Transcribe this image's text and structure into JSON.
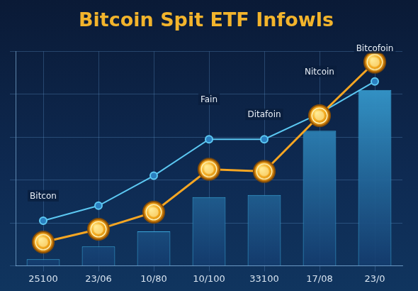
{
  "chart_data": {
    "type": "bar",
    "title": "Bitcoin Spit ETF Infowls",
    "categories": [
      "25100",
      "23/06",
      "10/80",
      "10/100",
      "33100",
      "17/08",
      "23/0"
    ],
    "series": [
      {
        "type": "bar",
        "color": "#3aa6d9",
        "values": [
          3,
          9,
          16,
          32,
          33,
          63,
          82
        ]
      },
      {
        "type": "line",
        "color": "#5cc8f2",
        "marker": "circle",
        "line_style": "solid",
        "values": [
          21,
          28,
          42,
          59,
          59,
          71,
          86
        ]
      },
      {
        "type": "line",
        "color": "#f5a623",
        "marker": "coin",
        "line_style": "solid",
        "values": [
          11,
          17,
          25,
          45,
          44,
          70,
          95
        ]
      }
    ],
    "annotations": [
      {
        "text": "Bitcon",
        "x": "25100",
        "y": 30
      },
      {
        "text": "Fain",
        "x": "10/100",
        "y": 75
      },
      {
        "text": "Ditafoin",
        "x": "33100",
        "y": 68
      },
      {
        "text": "Nitcoin",
        "x": "17/08",
        "y": 88
      },
      {
        "text": "Bitcofoin",
        "x": "23/0",
        "y": 99
      }
    ],
    "ylim": [
      0,
      100
    ],
    "yticks": [
      0,
      20,
      40,
      60,
      80,
      100
    ],
    "grid": true,
    "tick_labels": "x"
  }
}
